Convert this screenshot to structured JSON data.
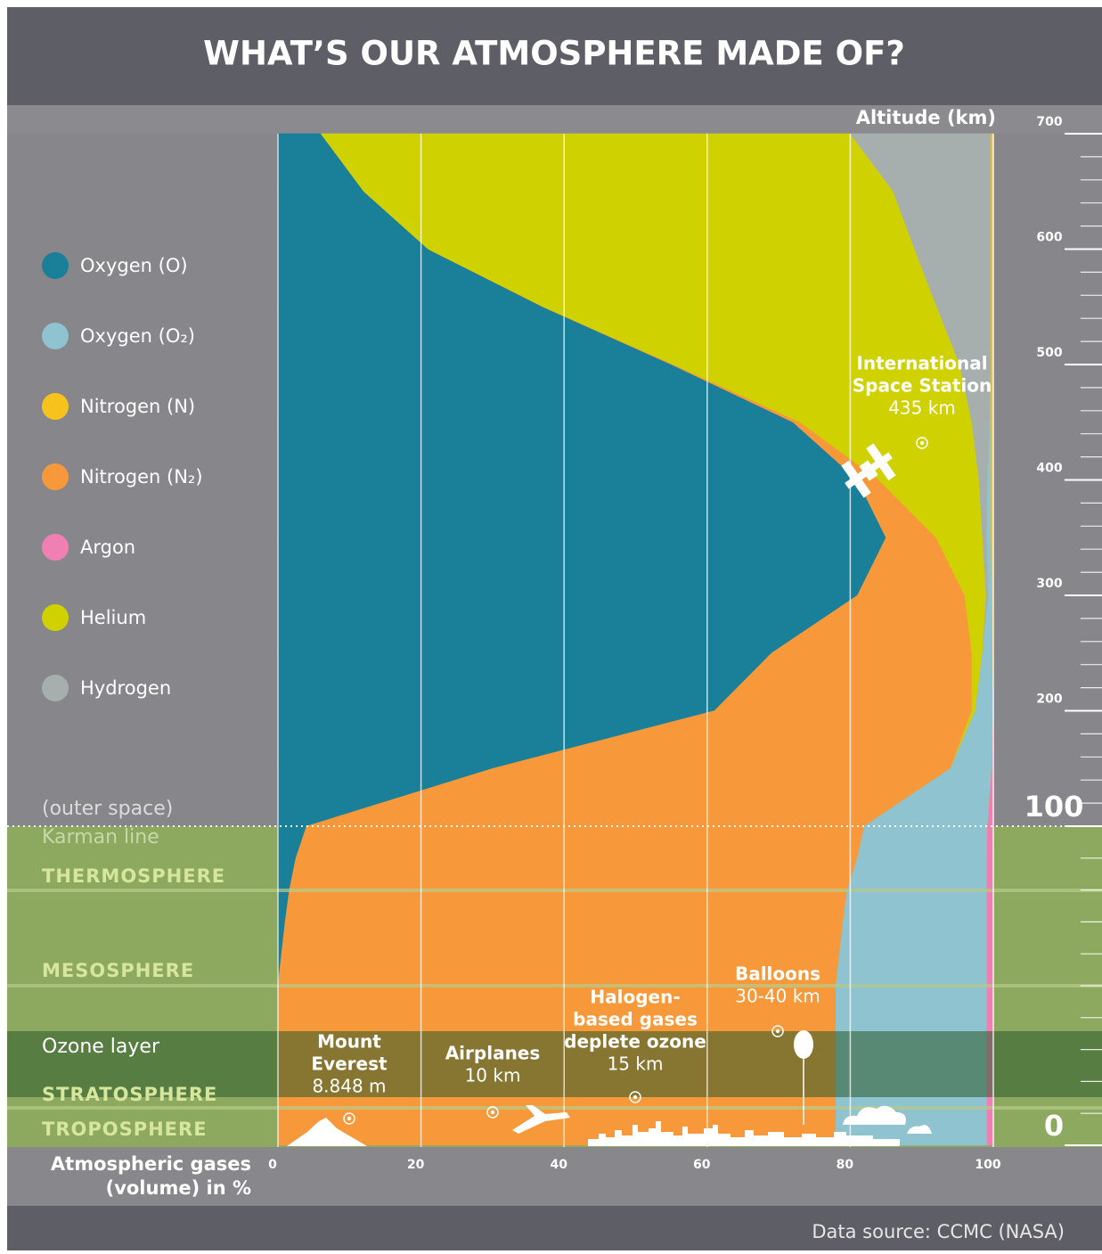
{
  "chart_data": {
    "type": "stacked-area",
    "title": "WHAT’S OUR ATMOSPHERE MADE OF?",
    "ylabel": "Altitude (km)",
    "xlabel": [
      "Atmospheric gases",
      "(volume) in %"
    ],
    "source": "Data source: CCMC (NASA)",
    "xlim": [
      0,
      100
    ],
    "xticks": [
      0,
      20,
      40,
      60,
      80,
      100
    ],
    "ylim": [
      0,
      700
    ],
    "y_break": 100,
    "yticks": [
      0,
      100,
      200,
      300,
      400,
      500,
      600,
      700
    ],
    "minor_yticks": [
      10,
      20,
      30,
      40,
      50,
      60,
      70,
      80,
      90,
      120,
      140,
      160,
      180,
      220,
      240,
      260,
      280,
      320,
      340,
      360,
      380,
      420,
      440,
      460,
      480,
      520,
      540,
      560,
      580,
      620,
      640,
      660,
      680
    ],
    "grid": true,
    "y": [
      0,
      10,
      20,
      30,
      40,
      50,
      60,
      70,
      80,
      90,
      100,
      150,
      200,
      250,
      300,
      350,
      400,
      450,
      500,
      550,
      600,
      650,
      700
    ],
    "stack_order": [
      0,
      3,
      5,
      6,
      1,
      2,
      4
    ],
    "series": [
      {
        "name": "Oxygen (O)",
        "color": "#1a7f98",
        "values": [
          0,
          0,
          0,
          0,
          0,
          0,
          0.5,
          1,
          1.6,
          2.5,
          4,
          30,
          61,
          69,
          81,
          85,
          81,
          72,
          55,
          37,
          21,
          12,
          6
        ]
      },
      {
        "name": "Oxygen (O₂)",
        "color": "#8ec3cf",
        "values": [
          21.1,
          21.1,
          21.1,
          21.1,
          21.1,
          21.1,
          20.6,
          20.1,
          19.5,
          18.1,
          17.2,
          5.8,
          2.5,
          1.4,
          0.5,
          0.6,
          0.5,
          0.2,
          0,
          0,
          0,
          0,
          0
        ]
      },
      {
        "name": "Nitrogen (N)",
        "color": "#f8c21c",
        "values": [
          0,
          0,
          0,
          0,
          0,
          0,
          0,
          0,
          0,
          0,
          0,
          0,
          0,
          0.1,
          0.2,
          0.3,
          0.3,
          0.3,
          0.3,
          0.3,
          0.3,
          0.3,
          0.3
        ]
      },
      {
        "name": "Nitrogen (N₂)",
        "color": "#f7993a",
        "values": [
          78,
          78,
          78,
          78,
          78,
          78,
          78,
          78,
          78,
          78.5,
          78,
          64,
          36,
          28,
          15,
          7,
          3,
          1,
          0.3,
          0.1,
          0,
          0,
          0
        ]
      },
      {
        "name": "Argon",
        "color": "#f07fb4",
        "values": [
          0.9,
          0.9,
          0.9,
          0.9,
          0.9,
          0.9,
          0.9,
          0.9,
          0.9,
          0.9,
          0.8,
          0.2,
          0,
          0,
          0,
          0,
          0,
          0,
          0,
          0,
          0,
          0,
          0
        ]
      },
      {
        "name": "Helium",
        "color": "#cfd200",
        "values": [
          0,
          0,
          0,
          0,
          0,
          0,
          0,
          0,
          0,
          0,
          0,
          0,
          0.5,
          1.5,
          3,
          6.5,
          14,
          24,
          40,
          55,
          68,
          74,
          74
        ]
      },
      {
        "name": "Hydrogen",
        "color": "#a7afae",
        "values": [
          0,
          0,
          0,
          0,
          0,
          0,
          0,
          0,
          0,
          0,
          0,
          0,
          0,
          0,
          0.3,
          0.6,
          1.2,
          2.5,
          4.4,
          7.6,
          10.7,
          13.7,
          19.7
        ]
      }
    ],
    "layers": [
      "(outer space)",
      "Karman line",
      "THERMOSPHERE",
      "MESOSPHERE",
      "Ozone layer",
      "STRATOSPHERE",
      "TROPOSPHERE"
    ],
    "annotations": [
      {
        "lines": [
          "International",
          "Space Station"
        ],
        "detail": "435 km"
      },
      {
        "lines": [
          "Balloons"
        ],
        "detail": "30-40 km"
      },
      {
        "lines": [
          "Halogen-",
          "based gases",
          "deplete ozone"
        ],
        "detail": "15 km"
      },
      {
        "lines": [
          "Airplanes"
        ],
        "detail": "10 km"
      },
      {
        "lines": [
          "Mount",
          "Everest"
        ],
        "detail": "8.848 m"
      }
    ]
  }
}
